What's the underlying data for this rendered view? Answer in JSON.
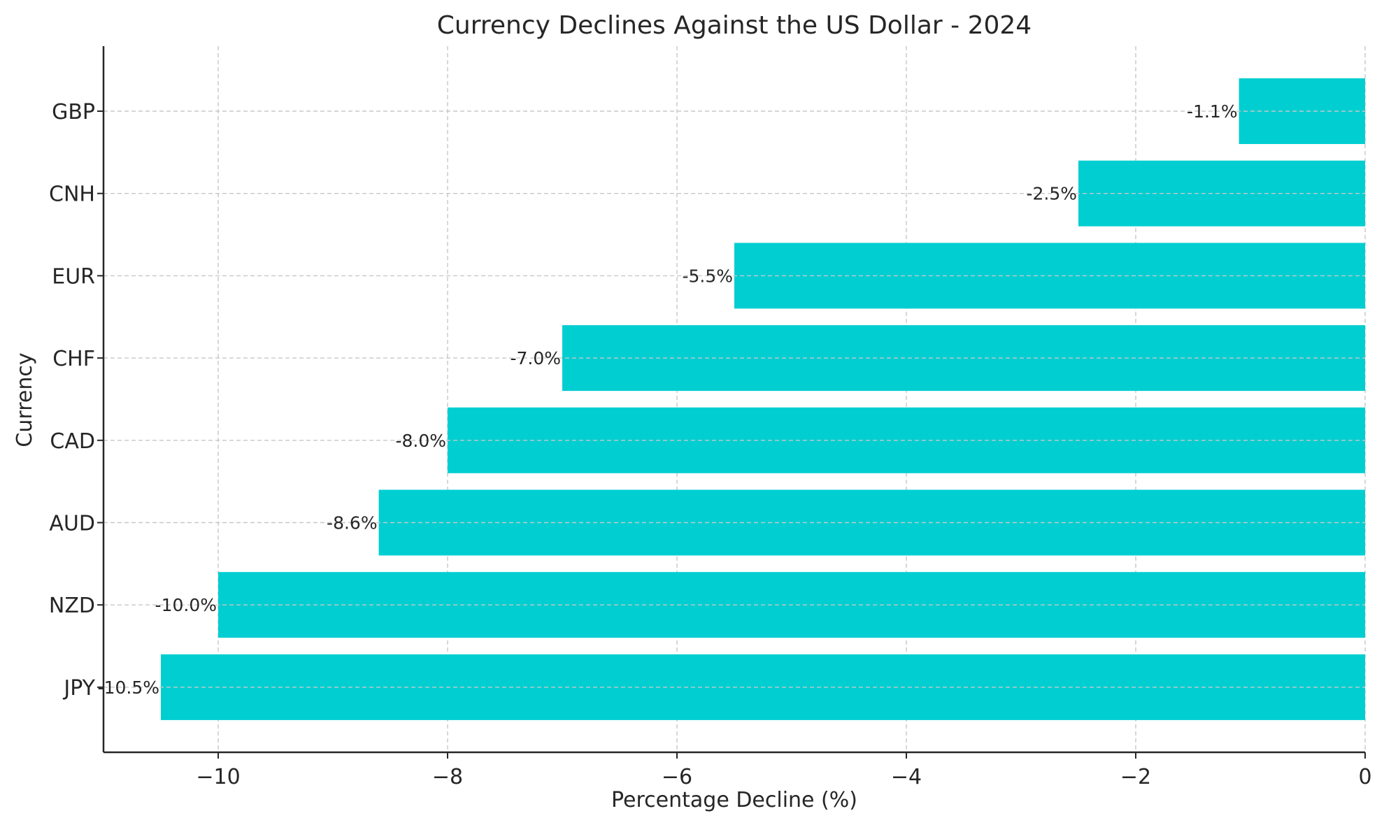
{
  "chart_data": {
    "type": "bar",
    "orientation": "horizontal",
    "title": "Currency Declines Against the US Dollar - 2024",
    "xlabel": "Percentage Decline (%)",
    "ylabel": "Currency",
    "categories": [
      "GBP",
      "CNH",
      "EUR",
      "CHF",
      "CAD",
      "AUD",
      "NZD",
      "JPY"
    ],
    "values": [
      -1.1,
      -2.5,
      -5.5,
      -7.0,
      -8.0,
      -8.6,
      -10.0,
      -10.5
    ],
    "data_labels": [
      "-1.1%",
      "-2.5%",
      "-5.5%",
      "-7.0%",
      "-8.0%",
      "-8.6%",
      "-10.0%",
      "-10.5%"
    ],
    "xlim": [
      -11.0,
      0
    ],
    "xticks": [
      -10,
      -8,
      -6,
      -4,
      -2,
      0
    ],
    "xtick_labels": [
      "−10",
      "−8",
      "−6",
      "−4",
      "−2",
      "0"
    ],
    "bar_color": "#00CED1",
    "grid": true
  }
}
